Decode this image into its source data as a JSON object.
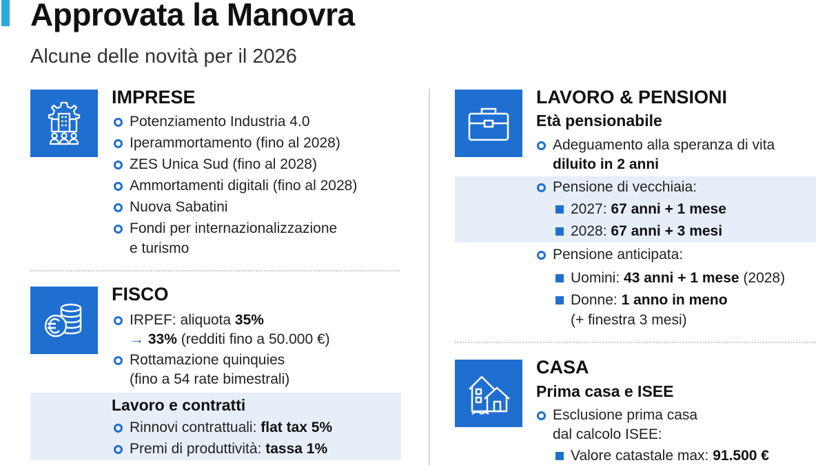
{
  "header": {
    "title": "Approvata la Manovra",
    "subtitle": "Alcune delle novità per il 2026"
  },
  "imprese": {
    "title": "IMPRESE",
    "icon": "industry-gear-people-icon",
    "items": [
      "Potenziamento Industria 4.0",
      "Iperammortamento (fino al 2028)",
      "ZES Unica Sud (fino al 2028)",
      "Ammortamenti digitali (fino al 2028)",
      "Nuova Sabatini",
      "Fondi per internazionalizzazione",
      "e turismo"
    ]
  },
  "fisco": {
    "title": "FISCO",
    "icon": "euro-coins-icon",
    "irpef_label": "IRPEF: aliquota ",
    "irpef_old": "35%",
    "irpef_arrow": "→",
    "irpef_new": "33%",
    "irpef_note": " (redditi fino a 50.000 €)",
    "rottamazione_line1": "Rottamazione quinquies",
    "rottamazione_line2": "(fino a 54 rate bimestrali)",
    "lavoro_title": "Lavoro e contratti",
    "rinnovi_label": "Rinnovi contrattuali: ",
    "rinnovi_value": "flat tax 5%",
    "premi_label": "Premi di produttività: ",
    "premi_value": "tassa 1%"
  },
  "lavoro_pensioni": {
    "title": "LAVORO & PENSIONI",
    "icon": "briefcase-icon",
    "eta_title": "Età pensionabile",
    "adeguamento_line1": "Adeguamento alla speranza di vita",
    "adeguamento_line2": "diluito in 2 anni",
    "vecchiaia_label": "Pensione di vecchiaia:",
    "v2027_year": "2027: ",
    "v2027_value": "67 anni + 1 mese",
    "v2028_year": "2028: ",
    "v2028_value": "67 anni + 3 mesi",
    "anticipata_label": "Pensione anticipata:",
    "uomini_label": "Uomini: ",
    "uomini_value": "43 anni + 1 mese",
    "uomini_note": " (2028)",
    "donne_label": "Donne: ",
    "donne_value": "1 anno in meno",
    "donne_note": "(+ finestra 3 mesi)"
  },
  "casa": {
    "title": "CASA",
    "icon": "houses-icon",
    "sub_title": "Prima casa e ISEE",
    "esclusione_line1": "Esclusione prima casa",
    "esclusione_line2": "dal calcolo ISEE:",
    "valore_label": "Valore catastale max: ",
    "valore_value": "91.500 €"
  },
  "colors": {
    "accent": "#1f6fd1",
    "title_bar": "#29a9e0",
    "band": "#e6eefa"
  }
}
